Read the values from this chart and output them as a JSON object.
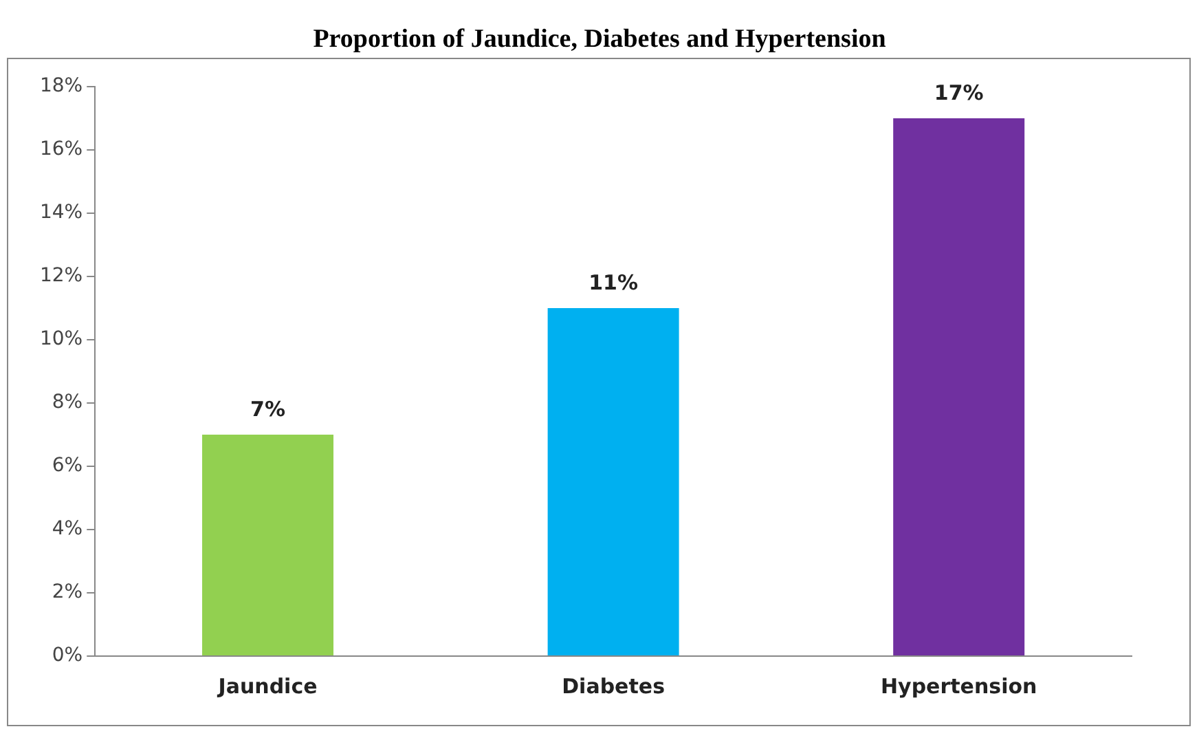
{
  "chart_data": {
    "type": "bar",
    "title": "Proportion of Jaundice, Diabetes and Hypertension",
    "categories": [
      "Jaundice",
      "Diabetes",
      "Hypertension"
    ],
    "values": [
      7,
      11,
      17
    ],
    "colors": [
      "#92d050",
      "#00b0f0",
      "#7030a0"
    ],
    "value_labels": [
      "7%",
      "11%",
      "17%"
    ],
    "ylim": [
      0,
      18
    ],
    "yticks": [
      {
        "value": 0,
        "label": "0%"
      },
      {
        "value": 2,
        "label": "2%"
      },
      {
        "value": 4,
        "label": "4%"
      },
      {
        "value": 6,
        "label": "6%"
      },
      {
        "value": 8,
        "label": "8%"
      },
      {
        "value": 10,
        "label": "10%"
      },
      {
        "value": 12,
        "label": "12%"
      },
      {
        "value": 14,
        "label": "14%"
      },
      {
        "value": 16,
        "label": "16%"
      },
      {
        "value": 18,
        "label": "18%"
      }
    ],
    "grid": false,
    "legend": false
  }
}
